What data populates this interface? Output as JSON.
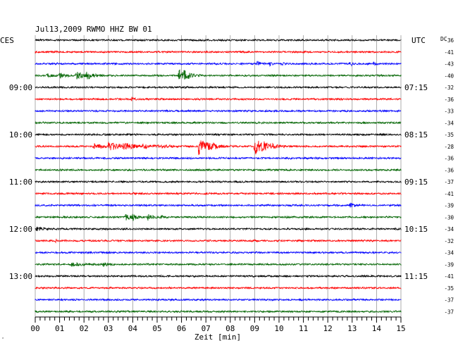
{
  "chart_data": {
    "type": "line",
    "title": "Jul13,2009   RWMO HHZ BW 01",
    "left_axis_label": "CES",
    "right_axis_label": "UTC",
    "offset_column_label": "DC",
    "xlabel": "Zeit [min]",
    "xlim": [
      0,
      15
    ],
    "x_ticks": [
      "00",
      "01",
      "02",
      "03",
      "04",
      "05",
      "06",
      "07",
      "08",
      "09",
      "10",
      "11",
      "12",
      "13",
      "14",
      "15"
    ],
    "minor_ticks_per_minute": 5,
    "grid": true,
    "trace_colors": [
      "#000000",
      "#ff0000",
      "#0000ff",
      "#006400"
    ],
    "left_time_labels": [
      {
        "row": 4,
        "text": "09:00"
      },
      {
        "row": 8,
        "text": "10:00"
      },
      {
        "row": 12,
        "text": "11:00"
      },
      {
        "row": 16,
        "text": "12:00"
      },
      {
        "row": 20,
        "text": "13:00"
      }
    ],
    "right_time_labels": [
      {
        "row": 4,
        "text": "07:15"
      },
      {
        "row": 8,
        "text": "08:15"
      },
      {
        "row": 12,
        "text": "09:15"
      },
      {
        "row": 16,
        "text": "10:15"
      },
      {
        "row": 20,
        "text": "11:15"
      }
    ],
    "dc_offsets": [
      "-36",
      "-41",
      "-43",
      "-40",
      "-32",
      "-36",
      "-33",
      "-34",
      "-35",
      "-28",
      "-36",
      "-36",
      "-37",
      "-41",
      "-39",
      "-30",
      "-34",
      "-32",
      "-34",
      "-39",
      "-41",
      "-35",
      "-37",
      "-37"
    ],
    "events": [
      {
        "row": 2,
        "t": [
          9.1,
          9.6,
          10.1,
          12.9,
          13.9
        ],
        "amp": [
          0.35,
          0.3,
          0.25,
          0.3,
          0.3
        ],
        "dur": [
          0.12,
          0.1,
          0.1,
          0.15,
          0.1
        ]
      },
      {
        "row": 3,
        "t": [
          0.5,
          1.0,
          1.7,
          2.1,
          5.9,
          6.1
        ],
        "amp": [
          0.35,
          0.4,
          0.6,
          0.7,
          0.9,
          0.8
        ],
        "dur": [
          0.15,
          0.25,
          0.3,
          0.25,
          0.2,
          0.3
        ]
      },
      {
        "row": 5,
        "t": [
          3.95
        ],
        "amp": [
          0.4
        ],
        "dur": [
          0.08
        ]
      },
      {
        "row": 9,
        "t": [
          2.4,
          3.0,
          3.6,
          4.4,
          5.2,
          6.7,
          7.3,
          9.0,
          9.4
        ],
        "amp": [
          0.45,
          0.6,
          0.55,
          0.35,
          0.3,
          1.4,
          0.5,
          1.3,
          1.0
        ],
        "dur": [
          0.4,
          0.6,
          0.5,
          0.5,
          0.4,
          0.4,
          0.3,
          0.45,
          0.3
        ]
      },
      {
        "row": 14,
        "t": [
          12.9
        ],
        "amp": [
          0.3
        ],
        "dur": [
          0.2
        ]
      },
      {
        "row": 15,
        "t": [
          3.7,
          4.0,
          4.6,
          5.2
        ],
        "amp": [
          0.5,
          0.55,
          0.5,
          0.3
        ],
        "dur": [
          0.2,
          0.15,
          0.2,
          0.1
        ]
      },
      {
        "row": 16,
        "t": [
          0.05
        ],
        "amp": [
          0.35
        ],
        "dur": [
          0.2
        ]
      },
      {
        "row": 17,
        "t": [
          0.85
        ],
        "amp": [
          0.3
        ],
        "dur": [
          0.05
        ]
      },
      {
        "row": 19,
        "t": [
          1.5,
          2.8
        ],
        "amp": [
          0.25,
          0.3
        ],
        "dur": [
          0.4,
          0.2
        ]
      }
    ]
  }
}
